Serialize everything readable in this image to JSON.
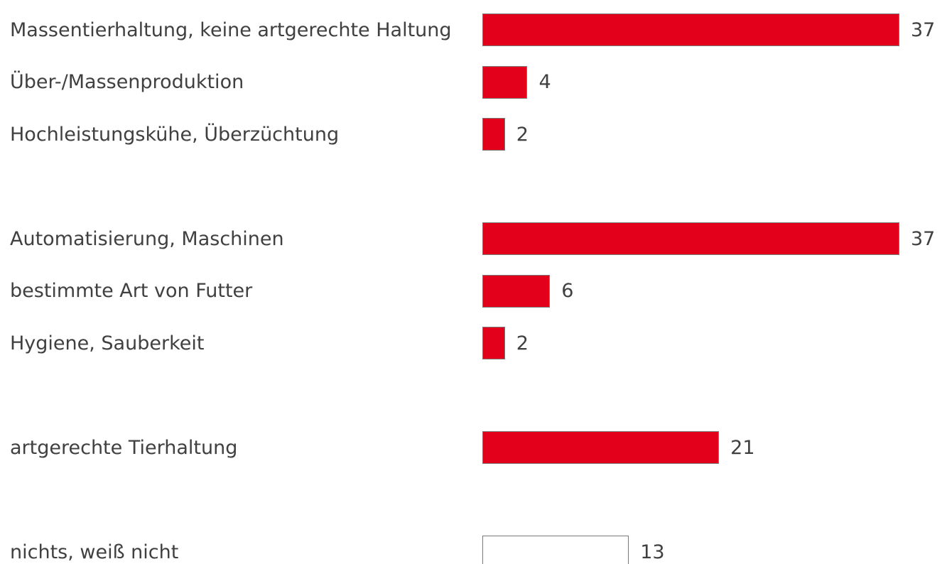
{
  "chart_data": {
    "type": "bar",
    "orientation": "horizontal",
    "categories": [
      "Massentierhaltung, keine artgerechte Haltung",
      "Über-/Massenproduktion",
      "Hochleistungskühe, Überzüchtung",
      null,
      "Automatisierung, Maschinen",
      "bestimmte Art von Futter",
      "Hygiene, Sauberkeit",
      null,
      "artgerechte Tierhaltung",
      null,
      "nichts, weiß nicht"
    ],
    "values": [
      37,
      4,
      2,
      null,
      37,
      6,
      2,
      null,
      21,
      null,
      13
    ],
    "colors": [
      "#e2001a",
      "#e2001a",
      "#e2001a",
      null,
      "#e2001a",
      "#e2001a",
      "#e2001a",
      null,
      "#e2001a",
      null,
      "#ffffff"
    ]
  }
}
